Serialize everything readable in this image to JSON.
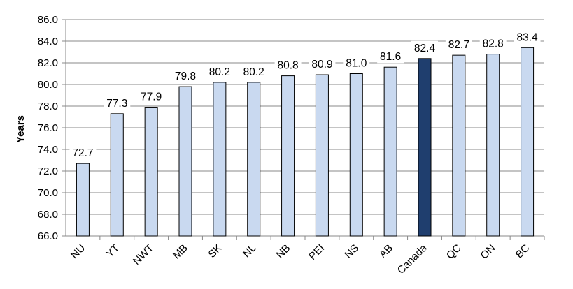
{
  "chart_data": {
    "type": "bar",
    "title": "",
    "xlabel": "",
    "ylabel": "Years",
    "ylim": [
      66.0,
      86.0
    ],
    "y_ticks": [
      "66.0",
      "68.0",
      "70.0",
      "72.0",
      "74.0",
      "76.0",
      "78.0",
      "80.0",
      "82.0",
      "84.0",
      "86.0"
    ],
    "grid": true,
    "categories": [
      "NU",
      "YT",
      "NWT",
      "MB",
      "SK",
      "NL",
      "NB",
      "PEI",
      "NS",
      "AB",
      "Canada",
      "QC",
      "ON",
      "BC"
    ],
    "values": [
      72.7,
      77.3,
      77.9,
      79.8,
      80.2,
      80.2,
      80.8,
      80.9,
      81.0,
      81.6,
      82.4,
      82.7,
      82.8,
      83.4
    ],
    "data_labels": [
      "72.7",
      "77.3",
      "77.9",
      "79.8",
      "80.2",
      "80.2",
      "80.8",
      "80.9",
      "81.0",
      "81.6",
      "82.4",
      "82.7",
      "82.8",
      "83.4"
    ],
    "highlight_category": "Canada",
    "colors": {
      "bar": "#c9d9f0",
      "bar_highlight": "#1f3e6e",
      "bar_outline": "#000000",
      "grid": "#888888",
      "axis": "#888888"
    }
  }
}
